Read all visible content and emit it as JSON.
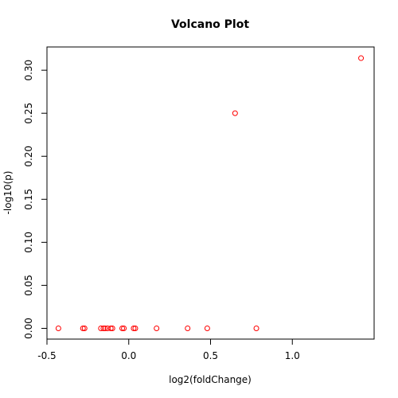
{
  "chart_data": {
    "type": "scatter",
    "title": "Volcano Plot",
    "xlabel": "log2(foldChange)",
    "ylabel": "-log10(p)",
    "xlim": [
      -0.5,
      1.5
    ],
    "ylim": [
      -0.0125,
      0.327
    ],
    "xticks": [
      "-0.5",
      "0.0",
      "0.5",
      "1.0"
    ],
    "yticks": [
      "0.00",
      "0.05",
      "0.10",
      "0.15",
      "0.20",
      "0.25",
      "0.30"
    ],
    "marker": "open-circle",
    "point_color": "#ff0000",
    "points": [
      {
        "x": -0.43,
        "y": 0.0
      },
      {
        "x": -0.28,
        "y": 0.0
      },
      {
        "x": -0.27,
        "y": 0.0
      },
      {
        "x": -0.17,
        "y": 0.0
      },
      {
        "x": -0.155,
        "y": 0.0
      },
      {
        "x": -0.145,
        "y": 0.0
      },
      {
        "x": -0.13,
        "y": 0.0
      },
      {
        "x": -0.11,
        "y": 0.0
      },
      {
        "x": -0.1,
        "y": 0.0
      },
      {
        "x": -0.04,
        "y": 0.0
      },
      {
        "x": -0.03,
        "y": 0.0
      },
      {
        "x": 0.03,
        "y": 0.0
      },
      {
        "x": 0.04,
        "y": 0.0
      },
      {
        "x": 0.17,
        "y": 0.0
      },
      {
        "x": 0.36,
        "y": 0.0
      },
      {
        "x": 0.48,
        "y": 0.0
      },
      {
        "x": 0.65,
        "y": 0.25
      },
      {
        "x": 0.78,
        "y": 0.0
      },
      {
        "x": 1.42,
        "y": 0.314
      }
    ]
  }
}
